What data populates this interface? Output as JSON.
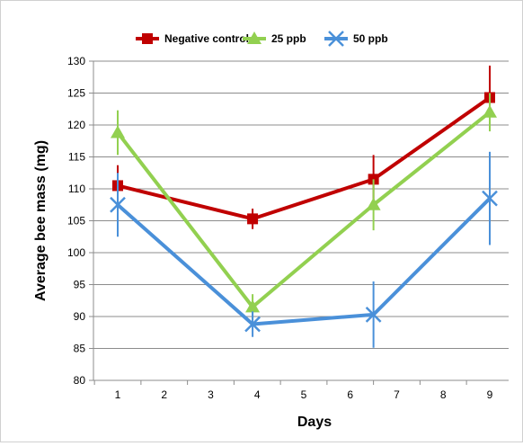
{
  "chart_data": {
    "type": "line",
    "xlabel": "Days",
    "ylabel": "Average bee mass (mg)",
    "x_ticks": [
      "1",
      "2",
      "3",
      "4",
      "5",
      "6",
      "7",
      "8",
      "9"
    ],
    "ylim": [
      80,
      130
    ],
    "y_ticks": [
      80,
      85,
      90,
      95,
      100,
      105,
      110,
      115,
      120,
      125,
      130
    ],
    "grid": "horizontal",
    "legend_position": "top",
    "series": [
      {
        "name": "Negative control",
        "color": "#c00000",
        "marker": "square",
        "x": [
          1,
          3.9,
          6.5,
          9
        ],
        "y": [
          110.5,
          105.3,
          111.5,
          124.3
        ],
        "error": [
          3.2,
          1.6,
          3.8,
          5.0
        ]
      },
      {
        "name": "25 ppb",
        "color": "#92d050",
        "marker": "triangle",
        "x": [
          1,
          3.9,
          6.5,
          9
        ],
        "y": [
          118.8,
          91.5,
          107.5,
          122
        ],
        "error": [
          3.5,
          2.0,
          4.0,
          3.0
        ]
      },
      {
        "name": "50 ppb",
        "color": "#4a90d9",
        "marker": "x",
        "x": [
          1,
          3.9,
          6.5,
          9
        ],
        "y": [
          107.5,
          88.8,
          90.3,
          108.5
        ],
        "error": [
          5.0,
          2.0,
          5.2,
          7.3
        ]
      }
    ]
  }
}
